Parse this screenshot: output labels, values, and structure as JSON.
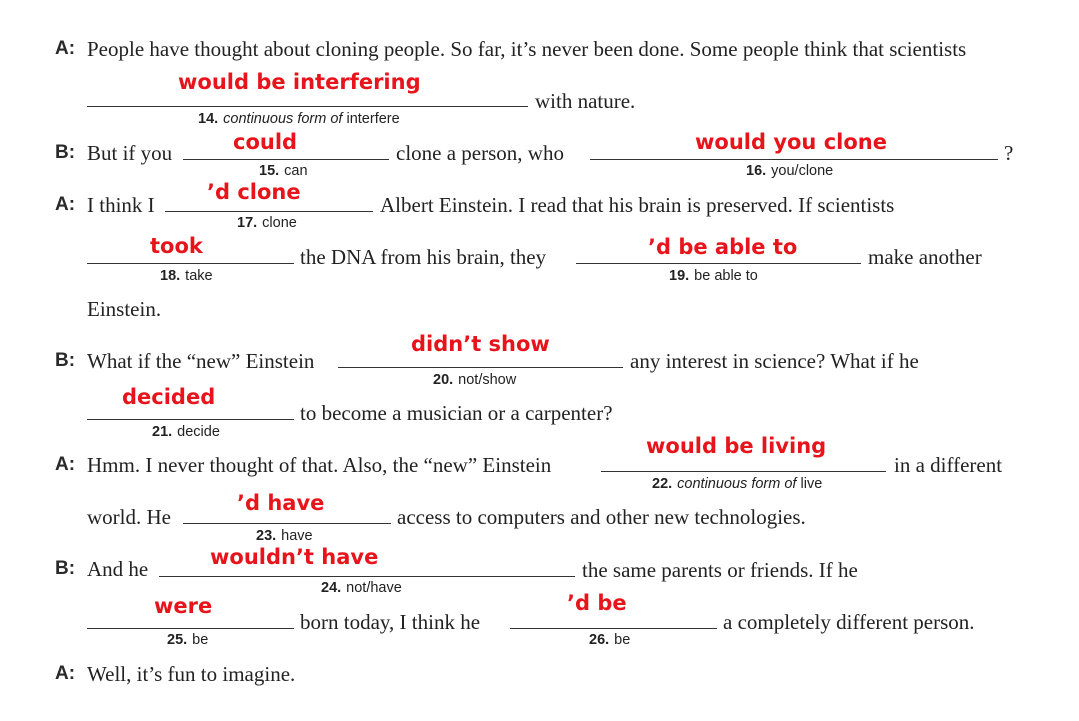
{
  "dialogue": {
    "speaker_a": "A:",
    "speaker_b": "B:",
    "l1": "People have thought about cloning people. So far, it’s never been done. Some people think that scientists",
    "l2": "with nature.",
    "l3a": "But if you",
    "l3b": "clone a person, who",
    "l3c": "?",
    "l4a": "I think I",
    "l4b": "Albert Einstein. I read that his brain is preserved. If scientists",
    "l5a": "the DNA from his brain, they",
    "l5b": "make another",
    "l6": "Einstein.",
    "l7a": "What if the “new” Einstein",
    "l7b": "any interest in science? What if he",
    "l8": "to become a musician or a carpenter?",
    "l9a": "Hmm. I never thought of that. Also, the “new” Einstein",
    "l9b": "in a different",
    "l10a": "world. He",
    "l10b": "access to computers and other new technologies.",
    "l11a": "And he",
    "l11b": "the same parents or friends. If he",
    "l12a": "born today, I think he",
    "l12b": "a completely different person.",
    "l13": "Well, it’s fun to imagine."
  },
  "blanks": [
    {
      "num": "14.",
      "cue_italic": "continuous form of",
      "cue": " interfere",
      "answer": "would be interfering"
    },
    {
      "num": "15.",
      "cue_italic": "",
      "cue": "can",
      "answer": "could"
    },
    {
      "num": "16.",
      "cue_italic": "",
      "cue": "you/clone",
      "answer": "would you clone"
    },
    {
      "num": "17.",
      "cue_italic": "",
      "cue": "clone",
      "answer": "’d clone"
    },
    {
      "num": "18.",
      "cue_italic": "",
      "cue": "take",
      "answer": "took"
    },
    {
      "num": "19.",
      "cue_italic": "",
      "cue": "be able to",
      "answer": "’d be able to"
    },
    {
      "num": "20.",
      "cue_italic": "",
      "cue": "not/show",
      "answer": "didn’t show"
    },
    {
      "num": "21.",
      "cue_italic": "",
      "cue": "decide",
      "answer": "decided"
    },
    {
      "num": "22.",
      "cue_italic": "continuous form of",
      "cue": " live",
      "answer": "would be living"
    },
    {
      "num": "23.",
      "cue_italic": "",
      "cue": "have",
      "answer": "’d have"
    },
    {
      "num": "24.",
      "cue_italic": "",
      "cue": "not/have",
      "answer": "wouldn’t have"
    },
    {
      "num": "25.",
      "cue_italic": "",
      "cue": "be",
      "answer": "were"
    },
    {
      "num": "26.",
      "cue_italic": "",
      "cue": "be",
      "answer": "’d be"
    }
  ],
  "colors": {
    "answer": "#e8141b",
    "text": "#222222"
  }
}
